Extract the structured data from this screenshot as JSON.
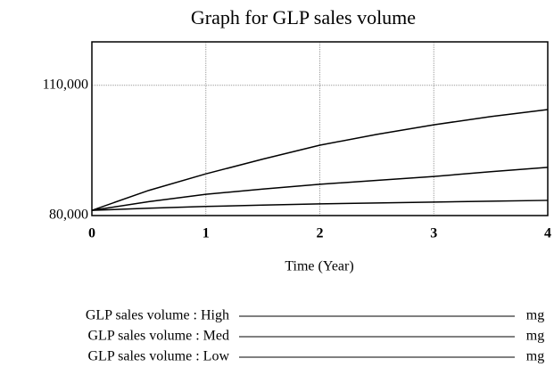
{
  "chart_data": {
    "type": "line",
    "title": "Graph for GLP sales volume",
    "xlabel": "Time (Year)",
    "x": [
      0,
      0.5,
      1,
      1.5,
      2,
      2.5,
      3,
      3.5,
      4
    ],
    "series": [
      {
        "name": "GLP sales volume : High",
        "unit": "mg",
        "color": "#000000",
        "values": [
          81200,
          85800,
          89600,
          93000,
          96200,
          98700,
          100900,
          102800,
          104400
        ]
      },
      {
        "name": "GLP sales volume : Med",
        "unit": "mg",
        "color": "#000000",
        "values": [
          81200,
          83200,
          84900,
          86100,
          87200,
          88100,
          89000,
          90100,
          91100
        ]
      },
      {
        "name": "GLP sales volume : Low",
        "unit": "mg",
        "color": "#000000",
        "values": [
          81200,
          81700,
          82100,
          82400,
          82700,
          82900,
          83100,
          83300,
          83500
        ]
      }
    ],
    "xlim": [
      0,
      4
    ],
    "xticks": [
      0,
      1,
      2,
      3,
      4
    ],
    "ylim": [
      80000,
      120000
    ],
    "yticks": [
      {
        "value": 80000,
        "label": "80,000"
      },
      {
        "value": 110000,
        "label": "110,000"
      }
    ],
    "grid": true
  }
}
